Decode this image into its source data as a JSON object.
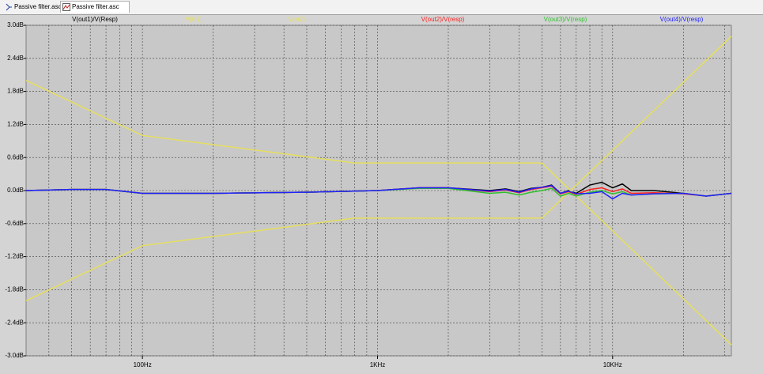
{
  "tabs": [
    {
      "label": "Passive filter.asc"
    },
    {
      "label": "Passive filter.asc"
    }
  ],
  "chart_data": {
    "type": "line",
    "xscale": "log",
    "grid": true,
    "xlim": [
      32,
      32000
    ],
    "ylim": [
      -3.0,
      3.0
    ],
    "xticks": [
      {
        "value": 100,
        "label": "100Hz"
      },
      {
        "value": 1000,
        "label": "1KHz"
      },
      {
        "value": 10000,
        "label": "10KHz"
      }
    ],
    "xminorticks": [
      40,
      50,
      60,
      70,
      80,
      90,
      200,
      300,
      400,
      500,
      600,
      700,
      800,
      900,
      2000,
      3000,
      4000,
      5000,
      6000,
      7000,
      8000,
      9000,
      20000,
      30000
    ],
    "yticks": [
      {
        "value": 3.0,
        "label": "3.0dB"
      },
      {
        "value": 2.4,
        "label": "2.4dB"
      },
      {
        "value": 1.8,
        "label": "1.8dB"
      },
      {
        "value": 1.2,
        "label": "1.2dB"
      },
      {
        "value": 0.6,
        "label": "0.6dB"
      },
      {
        "value": 0,
        "label": "0.0dB"
      },
      {
        "value": -0.6,
        "label": "-0.6dB"
      },
      {
        "value": -1.2,
        "label": "-1.2dB"
      },
      {
        "value": -1.8,
        "label": "-1.8dB"
      },
      {
        "value": -2.4,
        "label": "-2.4dB"
      },
      {
        "value": -3.0,
        "label": "-3.0dB"
      }
    ],
    "series": [
      {
        "name": "V(out1)/V(Resp)",
        "color": "#000000",
        "x": [
          32,
          50,
          70,
          100,
          200,
          500,
          1000,
          1500,
          2000,
          3000,
          3500,
          4000,
          4500,
          5000,
          5500,
          6000,
          6500,
          7000,
          8000,
          9000,
          10000,
          11000,
          12000,
          15000,
          20000,
          25000,
          32000
        ],
        "values": [
          0,
          0.02,
          0.02,
          -0.05,
          -0.05,
          -0.03,
          0,
          0.05,
          0.05,
          0,
          0.03,
          -0.02,
          0.04,
          0.06,
          0.1,
          -0.05,
          0.0,
          -0.05,
          0.1,
          0.15,
          0.05,
          0.12,
          0.0,
          0.0,
          -0.05,
          -0.1,
          -0.05
        ]
      },
      {
        "name": "V(in1)",
        "color": "#e6df5c",
        "x": [
          32,
          100,
          800,
          5000,
          32000
        ],
        "values": [
          2.0,
          1.0,
          0.5,
          0.5,
          -2.8
        ]
      },
      {
        "name": "V(in2)",
        "color": "#e6df5c",
        "x": [
          32,
          100,
          800,
          5000,
          32000
        ],
        "values": [
          -2.0,
          -1.0,
          -0.5,
          -0.5,
          2.8
        ]
      },
      {
        "name": "V(out2)/V(resp)",
        "color": "#ff2020",
        "x": [
          32,
          50,
          70,
          100,
          200,
          500,
          1000,
          1500,
          2000,
          3000,
          3500,
          4000,
          4500,
          5000,
          5500,
          6000,
          6500,
          7000,
          8000,
          9000,
          10000,
          11000,
          12000,
          15000,
          20000,
          25000,
          32000
        ],
        "values": [
          0,
          0.02,
          0.02,
          -0.05,
          -0.05,
          -0.03,
          0,
          0.05,
          0.05,
          -0.02,
          0.01,
          -0.04,
          0.02,
          0.05,
          0.08,
          -0.06,
          -0.02,
          -0.07,
          0.02,
          0.05,
          -0.02,
          0.03,
          -0.05,
          -0.04,
          -0.06,
          -0.1,
          -0.05
        ]
      },
      {
        "name": "V(out3)/V(resp)",
        "color": "#30c030",
        "x": [
          32,
          50,
          70,
          100,
          200,
          500,
          1000,
          1500,
          2000,
          3000,
          3500,
          4000,
          4500,
          5000,
          5500,
          6000,
          6500,
          7000,
          8000,
          9000,
          10000,
          11000,
          12000,
          15000,
          20000,
          25000,
          32000
        ],
        "values": [
          0,
          0.02,
          0.02,
          -0.05,
          -0.05,
          -0.03,
          0,
          0.04,
          0.04,
          -0.05,
          -0.03,
          -0.08,
          -0.03,
          0.0,
          0.04,
          -0.1,
          -0.05,
          -0.1,
          -0.03,
          0.0,
          -0.06,
          -0.02,
          -0.08,
          -0.06,
          -0.05,
          -0.1,
          -0.05
        ]
      },
      {
        "name": "V(out4)/V(resp)",
        "color": "#2020ff",
        "x": [
          32,
          50,
          70,
          100,
          200,
          500,
          1000,
          1500,
          2000,
          3000,
          3500,
          4000,
          4500,
          5000,
          5500,
          6000,
          6500,
          7000,
          8000,
          9000,
          10000,
          11000,
          12000,
          15000,
          20000,
          25000,
          32000
        ],
        "values": [
          0,
          0.02,
          0.02,
          -0.05,
          -0.05,
          -0.03,
          0,
          0.05,
          0.05,
          -0.01,
          0.02,
          -0.03,
          0.03,
          0.06,
          0.09,
          -0.05,
          -0.01,
          -0.06,
          -0.05,
          -0.02,
          -0.15,
          -0.05,
          -0.08,
          -0.06,
          -0.05,
          -0.1,
          -0.05
        ]
      }
    ]
  }
}
